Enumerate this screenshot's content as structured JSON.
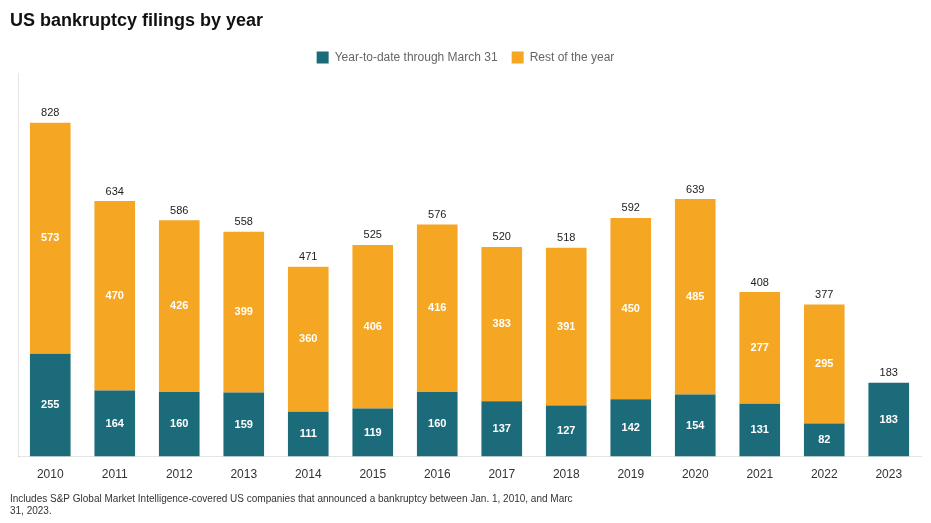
{
  "chart_data": {
    "type": "bar",
    "title": "US bankruptcy filings by year",
    "categories": [
      "2010",
      "2011",
      "2012",
      "2013",
      "2014",
      "2015",
      "2016",
      "2017",
      "2018",
      "2019",
      "2020",
      "2021",
      "2022",
      "2023"
    ],
    "series": [
      {
        "name": "Year-to-date through March 31",
        "color": "#1c6b7a",
        "values": [
          255,
          164,
          160,
          159,
          111,
          119,
          160,
          137,
          127,
          142,
          154,
          131,
          82,
          183
        ]
      },
      {
        "name": "Rest of the year",
        "color": "#f5a623",
        "values": [
          573,
          470,
          426,
          399,
          360,
          406,
          416,
          383,
          391,
          450,
          485,
          277,
          295,
          0
        ]
      }
    ],
    "totals": [
      828,
      634,
      586,
      558,
      471,
      525,
      576,
      520,
      518,
      592,
      639,
      408,
      377,
      183
    ],
    "footnote": "Includes S&P Global Market Intelligence-covered US companies that announced a bankruptcy between Jan. 1, 2010, and Marc\n31, 2023.",
    "ylim": [
      0,
      950
    ],
    "stacked": true,
    "data_labels": true,
    "tick_labels": "x",
    "grid": false,
    "legend": "top"
  }
}
